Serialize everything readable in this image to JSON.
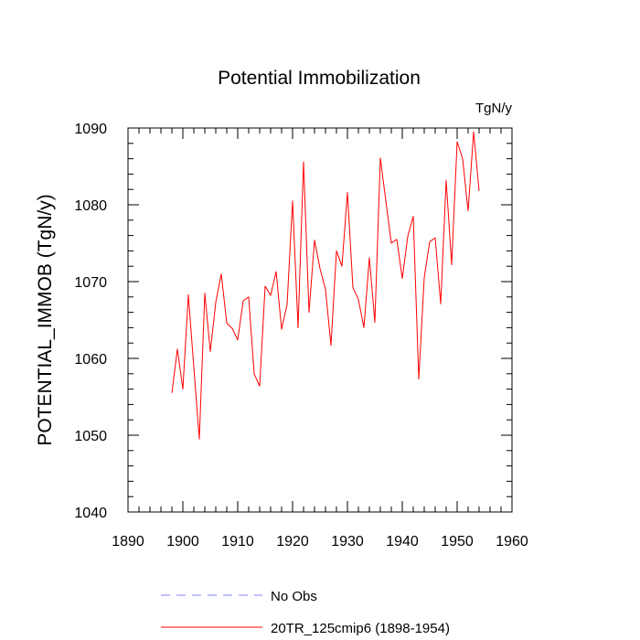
{
  "chart_data": {
    "type": "line",
    "title": "Potential Immobilization",
    "units_label": "TgN/y",
    "ylabel": "POTENTIAL_IMMOB  (TgN/y)",
    "xlabel": "",
    "xlim": [
      1890,
      1960
    ],
    "ylim": [
      1040,
      1090
    ],
    "xticks": [
      1890,
      1900,
      1910,
      1920,
      1930,
      1940,
      1950,
      1960
    ],
    "yticks": [
      1040,
      1050,
      1060,
      1070,
      1080,
      1090
    ],
    "x_minor_step": 2,
    "y_minor_step": 2,
    "series": [
      {
        "name": "20TR_125cmip6 (1898-1954)",
        "color": "#ff0000",
        "x": [
          1898,
          1899,
          1900,
          1901,
          1902,
          1903,
          1904,
          1905,
          1906,
          1907,
          1908,
          1909,
          1910,
          1911,
          1912,
          1913,
          1914,
          1915,
          1916,
          1917,
          1918,
          1919,
          1920,
          1921,
          1922,
          1923,
          1924,
          1925,
          1926,
          1927,
          1928,
          1929,
          1930,
          1931,
          1932,
          1933,
          1934,
          1935,
          1936,
          1937,
          1938,
          1939,
          1940,
          1941,
          1942,
          1943,
          1944,
          1945,
          1946,
          1947,
          1948,
          1949,
          1950,
          1951,
          1952,
          1953,
          1954
        ],
        "values": [
          1055.5,
          1061.2,
          1056.0,
          1068.3,
          1058.8,
          1049.5,
          1068.5,
          1060.9,
          1067.3,
          1071.0,
          1064.6,
          1063.9,
          1062.4,
          1067.5,
          1068.0,
          1058.0,
          1056.4,
          1069.4,
          1068.2,
          1071.3,
          1063.8,
          1067.0,
          1080.5,
          1064.0,
          1085.6,
          1066.0,
          1075.4,
          1071.7,
          1069.0,
          1061.7,
          1074.0,
          1072.0,
          1081.6,
          1069.2,
          1067.7,
          1064.0,
          1073.1,
          1064.7,
          1086.1,
          1080.5,
          1075.0,
          1075.5,
          1070.4,
          1075.9,
          1078.5,
          1057.3,
          1070.5,
          1075.2,
          1075.7,
          1067.1,
          1083.2,
          1072.2,
          1088.2,
          1086.0,
          1079.2,
          1089.5,
          1081.8
        ]
      }
    ],
    "legend": [
      {
        "label": "No Obs",
        "color": "#8080ff",
        "style": "dashed"
      },
      {
        "label": "20TR_125cmip6 (1898-1954)",
        "color": "#ff0000",
        "style": "solid"
      }
    ],
    "legend_position": "bottom"
  }
}
